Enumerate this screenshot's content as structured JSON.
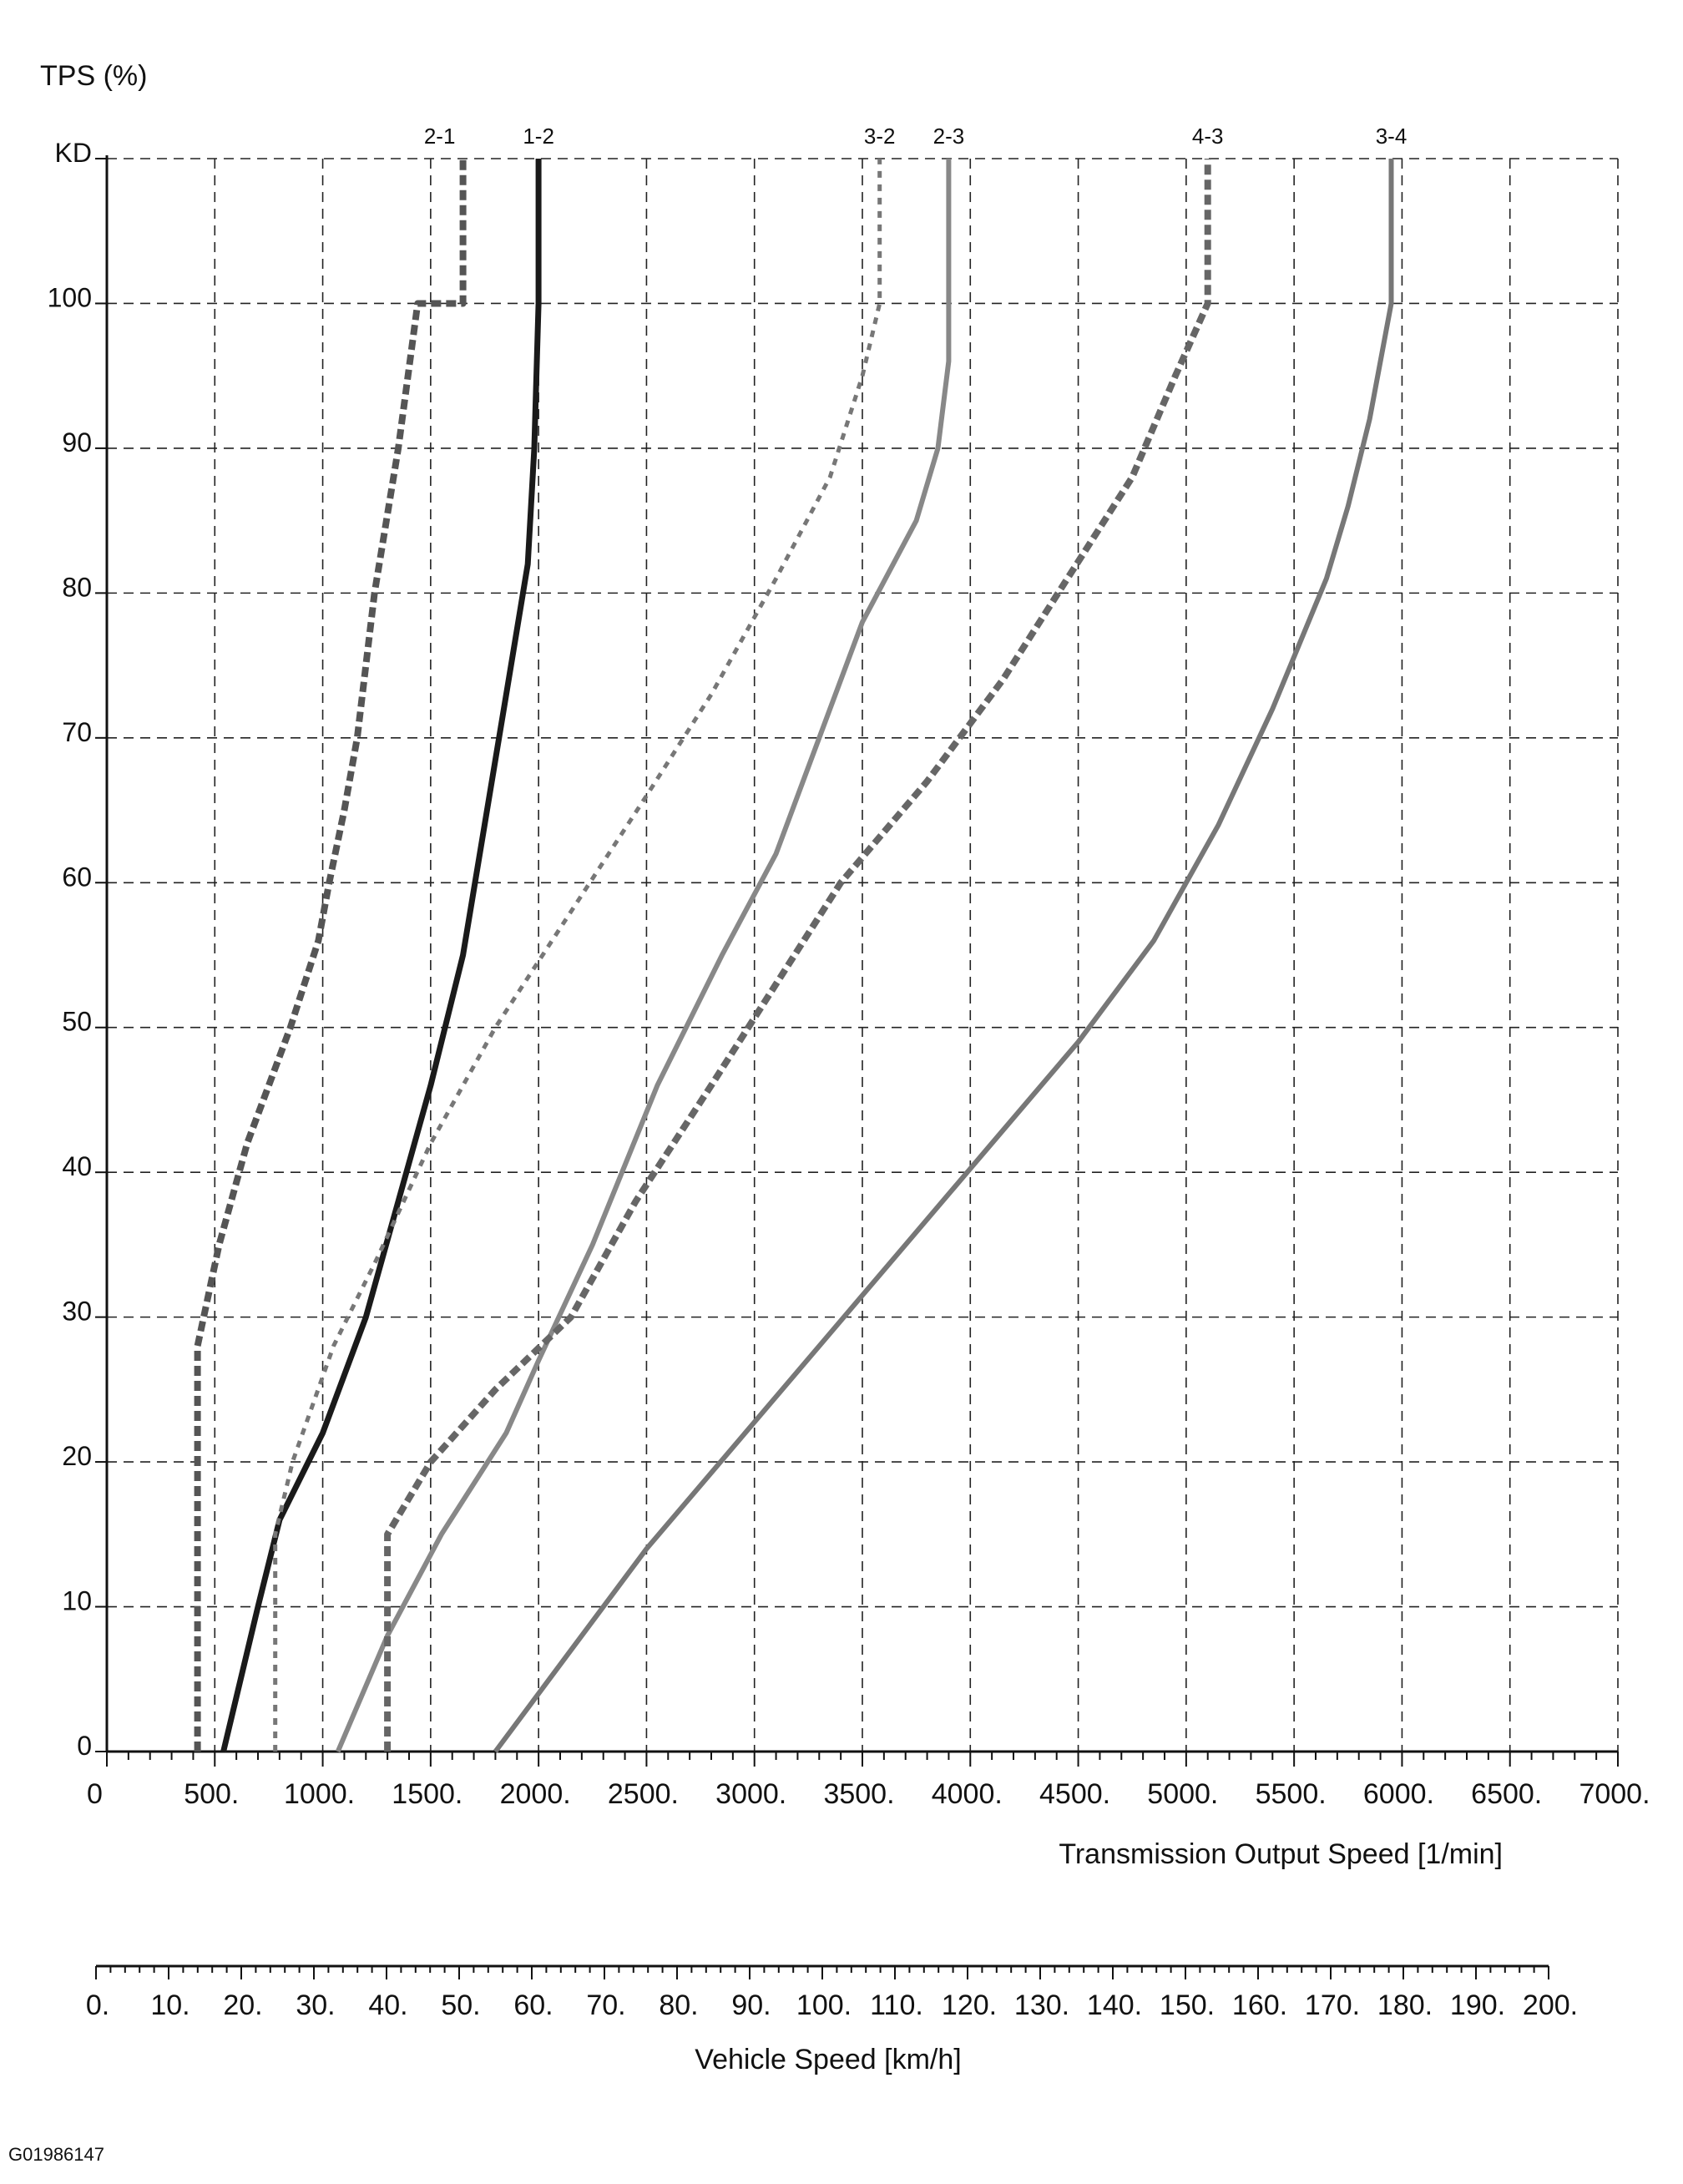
{
  "chart_data": {
    "type": "line",
    "ylabel": "TPS (%)",
    "xlabel": "Transmission Output Speed [1/min]",
    "secondary_xlabel": "Vehicle Speed [km/h]",
    "figure_id": "G01986147",
    "xlim": [
      0,
      7000
    ],
    "ylim": [
      0,
      110
    ],
    "grid": true,
    "y_ticks": [
      {
        "value": 0,
        "label": "0"
      },
      {
        "value": 10,
        "label": "10"
      },
      {
        "value": 20,
        "label": "20"
      },
      {
        "value": 30,
        "label": "30"
      },
      {
        "value": 40,
        "label": "40"
      },
      {
        "value": 50,
        "label": "50"
      },
      {
        "value": 60,
        "label": "60"
      },
      {
        "value": 70,
        "label": "70"
      },
      {
        "value": 80,
        "label": "80"
      },
      {
        "value": 90,
        "label": "90"
      },
      {
        "value": 100,
        "label": "100"
      },
      {
        "value": 110,
        "label": "KD"
      }
    ],
    "x_ticks": [
      {
        "value": 0,
        "label": "0"
      },
      {
        "value": 500,
        "label": "500."
      },
      {
        "value": 1000,
        "label": "1000."
      },
      {
        "value": 1500,
        "label": "1500."
      },
      {
        "value": 2000,
        "label": "2000."
      },
      {
        "value": 2500,
        "label": "2500."
      },
      {
        "value": 3000,
        "label": "3000."
      },
      {
        "value": 3500,
        "label": "3500."
      },
      {
        "value": 4000,
        "label": "4000."
      },
      {
        "value": 4500,
        "label": "4500."
      },
      {
        "value": 5000,
        "label": "5000."
      },
      {
        "value": 5500,
        "label": "5500."
      },
      {
        "value": 6000,
        "label": "6000."
      },
      {
        "value": 6500,
        "label": "6500."
      },
      {
        "value": 7000,
        "label": "7000."
      }
    ],
    "secondary_x_ticks": [
      {
        "value": 0,
        "label": "0."
      },
      {
        "value": 10,
        "label": "10."
      },
      {
        "value": 20,
        "label": "20."
      },
      {
        "value": 30,
        "label": "30."
      },
      {
        "value": 40,
        "label": "40."
      },
      {
        "value": 50,
        "label": "50."
      },
      {
        "value": 60,
        "label": "60."
      },
      {
        "value": 70,
        "label": "70."
      },
      {
        "value": 80,
        "label": "80."
      },
      {
        "value": 90,
        "label": "90."
      },
      {
        "value": 100,
        "label": "100."
      },
      {
        "value": 110,
        "label": "110."
      },
      {
        "value": 120,
        "label": "120."
      },
      {
        "value": 130,
        "label": "130."
      },
      {
        "value": 140,
        "label": "140."
      },
      {
        "value": 150,
        "label": "150."
      },
      {
        "value": 160,
        "label": "160."
      },
      {
        "value": 170,
        "label": "170."
      },
      {
        "value": 180,
        "label": "180."
      },
      {
        "value": 190,
        "label": "190."
      },
      {
        "value": 200,
        "label": "200."
      }
    ],
    "secondary_xlim": [
      0,
      200
    ],
    "series": [
      {
        "name": "2-1",
        "style": "dashed-heavy",
        "color": "#555555",
        "points": [
          [
            420,
            0
          ],
          [
            420,
            28
          ],
          [
            520,
            35
          ],
          [
            650,
            42
          ],
          [
            850,
            50
          ],
          [
            980,
            56
          ],
          [
            1030,
            60
          ],
          [
            1100,
            65
          ],
          [
            1160,
            70
          ],
          [
            1240,
            80
          ],
          [
            1350,
            90
          ],
          [
            1440,
            100
          ],
          [
            1650,
            100
          ],
          [
            1650,
            110
          ]
        ]
      },
      {
        "name": "1-2",
        "style": "solid",
        "color": "#1a1a1a",
        "points": [
          [
            540,
            0
          ],
          [
            700,
            10
          ],
          [
            800,
            16
          ],
          [
            1000,
            22
          ],
          [
            1200,
            30
          ],
          [
            1350,
            38
          ],
          [
            1500,
            46
          ],
          [
            1650,
            55
          ],
          [
            1750,
            64
          ],
          [
            1850,
            73
          ],
          [
            1950,
            82
          ],
          [
            1980,
            90
          ],
          [
            2000,
            100
          ],
          [
            2000,
            110
          ]
        ]
      },
      {
        "name": "3-2",
        "style": "dashed-light",
        "color": "#777777",
        "points": [
          [
            780,
            0
          ],
          [
            780,
            15
          ],
          [
            860,
            20
          ],
          [
            1050,
            28
          ],
          [
            1250,
            34
          ],
          [
            1500,
            42
          ],
          [
            1800,
            50
          ],
          [
            2150,
            58
          ],
          [
            2500,
            66
          ],
          [
            2800,
            73
          ],
          [
            3100,
            81
          ],
          [
            3350,
            88
          ],
          [
            3500,
            95
          ],
          [
            3580,
            100
          ],
          [
            3580,
            110
          ]
        ]
      },
      {
        "name": "2-3",
        "style": "solid-light",
        "color": "#888888",
        "points": [
          [
            1070,
            0
          ],
          [
            1300,
            8
          ],
          [
            1550,
            15
          ],
          [
            1850,
            22
          ],
          [
            2000,
            27
          ],
          [
            2250,
            35
          ],
          [
            2550,
            46
          ],
          [
            2850,
            55
          ],
          [
            3100,
            62
          ],
          [
            3300,
            70
          ],
          [
            3500,
            78
          ],
          [
            3750,
            85
          ],
          [
            3850,
            90
          ],
          [
            3900,
            96
          ],
          [
            3900,
            110
          ]
        ]
      },
      {
        "name": "4-3",
        "style": "dashed-heavy",
        "color": "#666666",
        "points": [
          [
            1300,
            0
          ],
          [
            1300,
            15
          ],
          [
            1500,
            20
          ],
          [
            1800,
            25
          ],
          [
            2150,
            30
          ],
          [
            2450,
            38
          ],
          [
            2800,
            46
          ],
          [
            3100,
            53
          ],
          [
            3400,
            60
          ],
          [
            3800,
            67
          ],
          [
            4150,
            74
          ],
          [
            4450,
            81
          ],
          [
            4750,
            88
          ],
          [
            4950,
            95
          ],
          [
            5100,
            100
          ],
          [
            5100,
            110
          ]
        ]
      },
      {
        "name": "3-4",
        "style": "solid-light",
        "color": "#777777",
        "points": [
          [
            1800,
            0
          ],
          [
            2150,
            7
          ],
          [
            2500,
            14
          ],
          [
            2900,
            21
          ],
          [
            3300,
            28
          ],
          [
            3700,
            35
          ],
          [
            4100,
            42
          ],
          [
            4500,
            49
          ],
          [
            4850,
            56
          ],
          [
            5150,
            64
          ],
          [
            5400,
            72
          ],
          [
            5650,
            81
          ],
          [
            5750,
            86
          ],
          [
            5850,
            92
          ],
          [
            5950,
            100
          ],
          [
            5950,
            110
          ]
        ]
      }
    ]
  }
}
